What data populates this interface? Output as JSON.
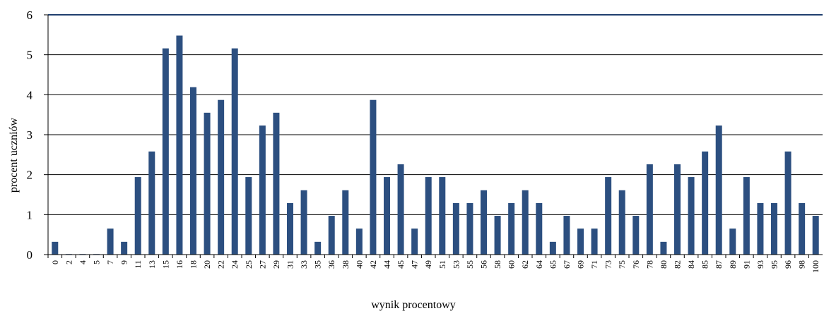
{
  "chart_data": {
    "type": "bar",
    "title": "",
    "xlabel": "wynik procentowy",
    "ylabel": "procent uczniów",
    "ylim": [
      0,
      6
    ],
    "yticks": [
      0,
      1,
      2,
      3,
      4,
      5,
      6
    ],
    "grid": true,
    "legend": "none",
    "bar_color": "#2c4f80",
    "categories": [
      "0",
      "2",
      "4",
      "5",
      "7",
      "9",
      "11",
      "13",
      "15",
      "16",
      "18",
      "20",
      "22",
      "24",
      "25",
      "27",
      "29",
      "31",
      "33",
      "35",
      "36",
      "38",
      "40",
      "42",
      "44",
      "45",
      "47",
      "49",
      "51",
      "53",
      "55",
      "56",
      "58",
      "60",
      "62",
      "64",
      "65",
      "67",
      "69",
      "71",
      "73",
      "75",
      "76",
      "78",
      "80",
      "82",
      "84",
      "85",
      "87",
      "89",
      "91",
      "93",
      "95",
      "96",
      "98",
      "100"
    ],
    "values": [
      0.32,
      0,
      0,
      0,
      0.65,
      0.32,
      1.94,
      2.58,
      5.16,
      5.48,
      4.19,
      3.55,
      3.87,
      5.16,
      1.94,
      3.23,
      3.55,
      1.29,
      1.61,
      0.32,
      0.97,
      1.61,
      0.65,
      3.87,
      1.94,
      2.26,
      0.65,
      1.94,
      1.94,
      1.29,
      1.29,
      1.61,
      0.97,
      1.29,
      1.61,
      1.29,
      0.32,
      0.97,
      0.65,
      0.65,
      1.94,
      1.61,
      0.97,
      2.26,
      0.32,
      2.26,
      1.94,
      2.58,
      3.23,
      0.65,
      1.94,
      1.29,
      1.29,
      2.58,
      1.29,
      0.97
    ]
  }
}
